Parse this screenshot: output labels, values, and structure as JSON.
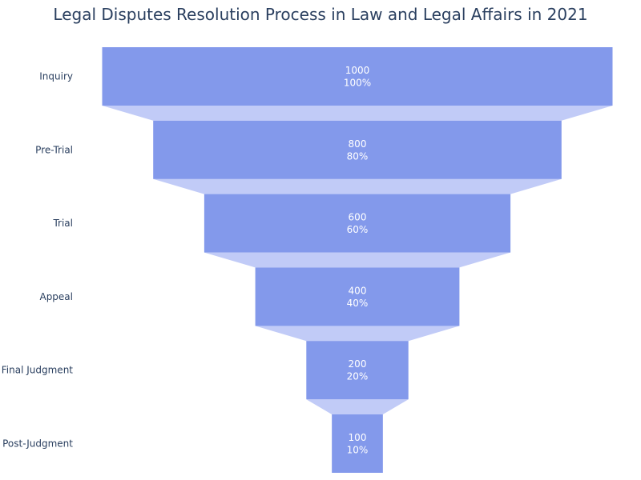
{
  "chart_data": {
    "type": "funnel",
    "title": "Legal Disputes Resolution Process in Law and Legal Affairs in 2021",
    "categories": [
      "Inquiry",
      "Pre-Trial",
      "Trial",
      "Appeal",
      "Final Judgment",
      "Post-Judgment"
    ],
    "values": [
      1000,
      800,
      600,
      400,
      200,
      100
    ],
    "percent_labels": [
      "100%",
      "80%",
      "60%",
      "40%",
      "20%",
      "10%"
    ],
    "colors": {
      "bar": "#8399eb",
      "connector": "#c1cbf7"
    },
    "grid": false,
    "legend": "none"
  }
}
